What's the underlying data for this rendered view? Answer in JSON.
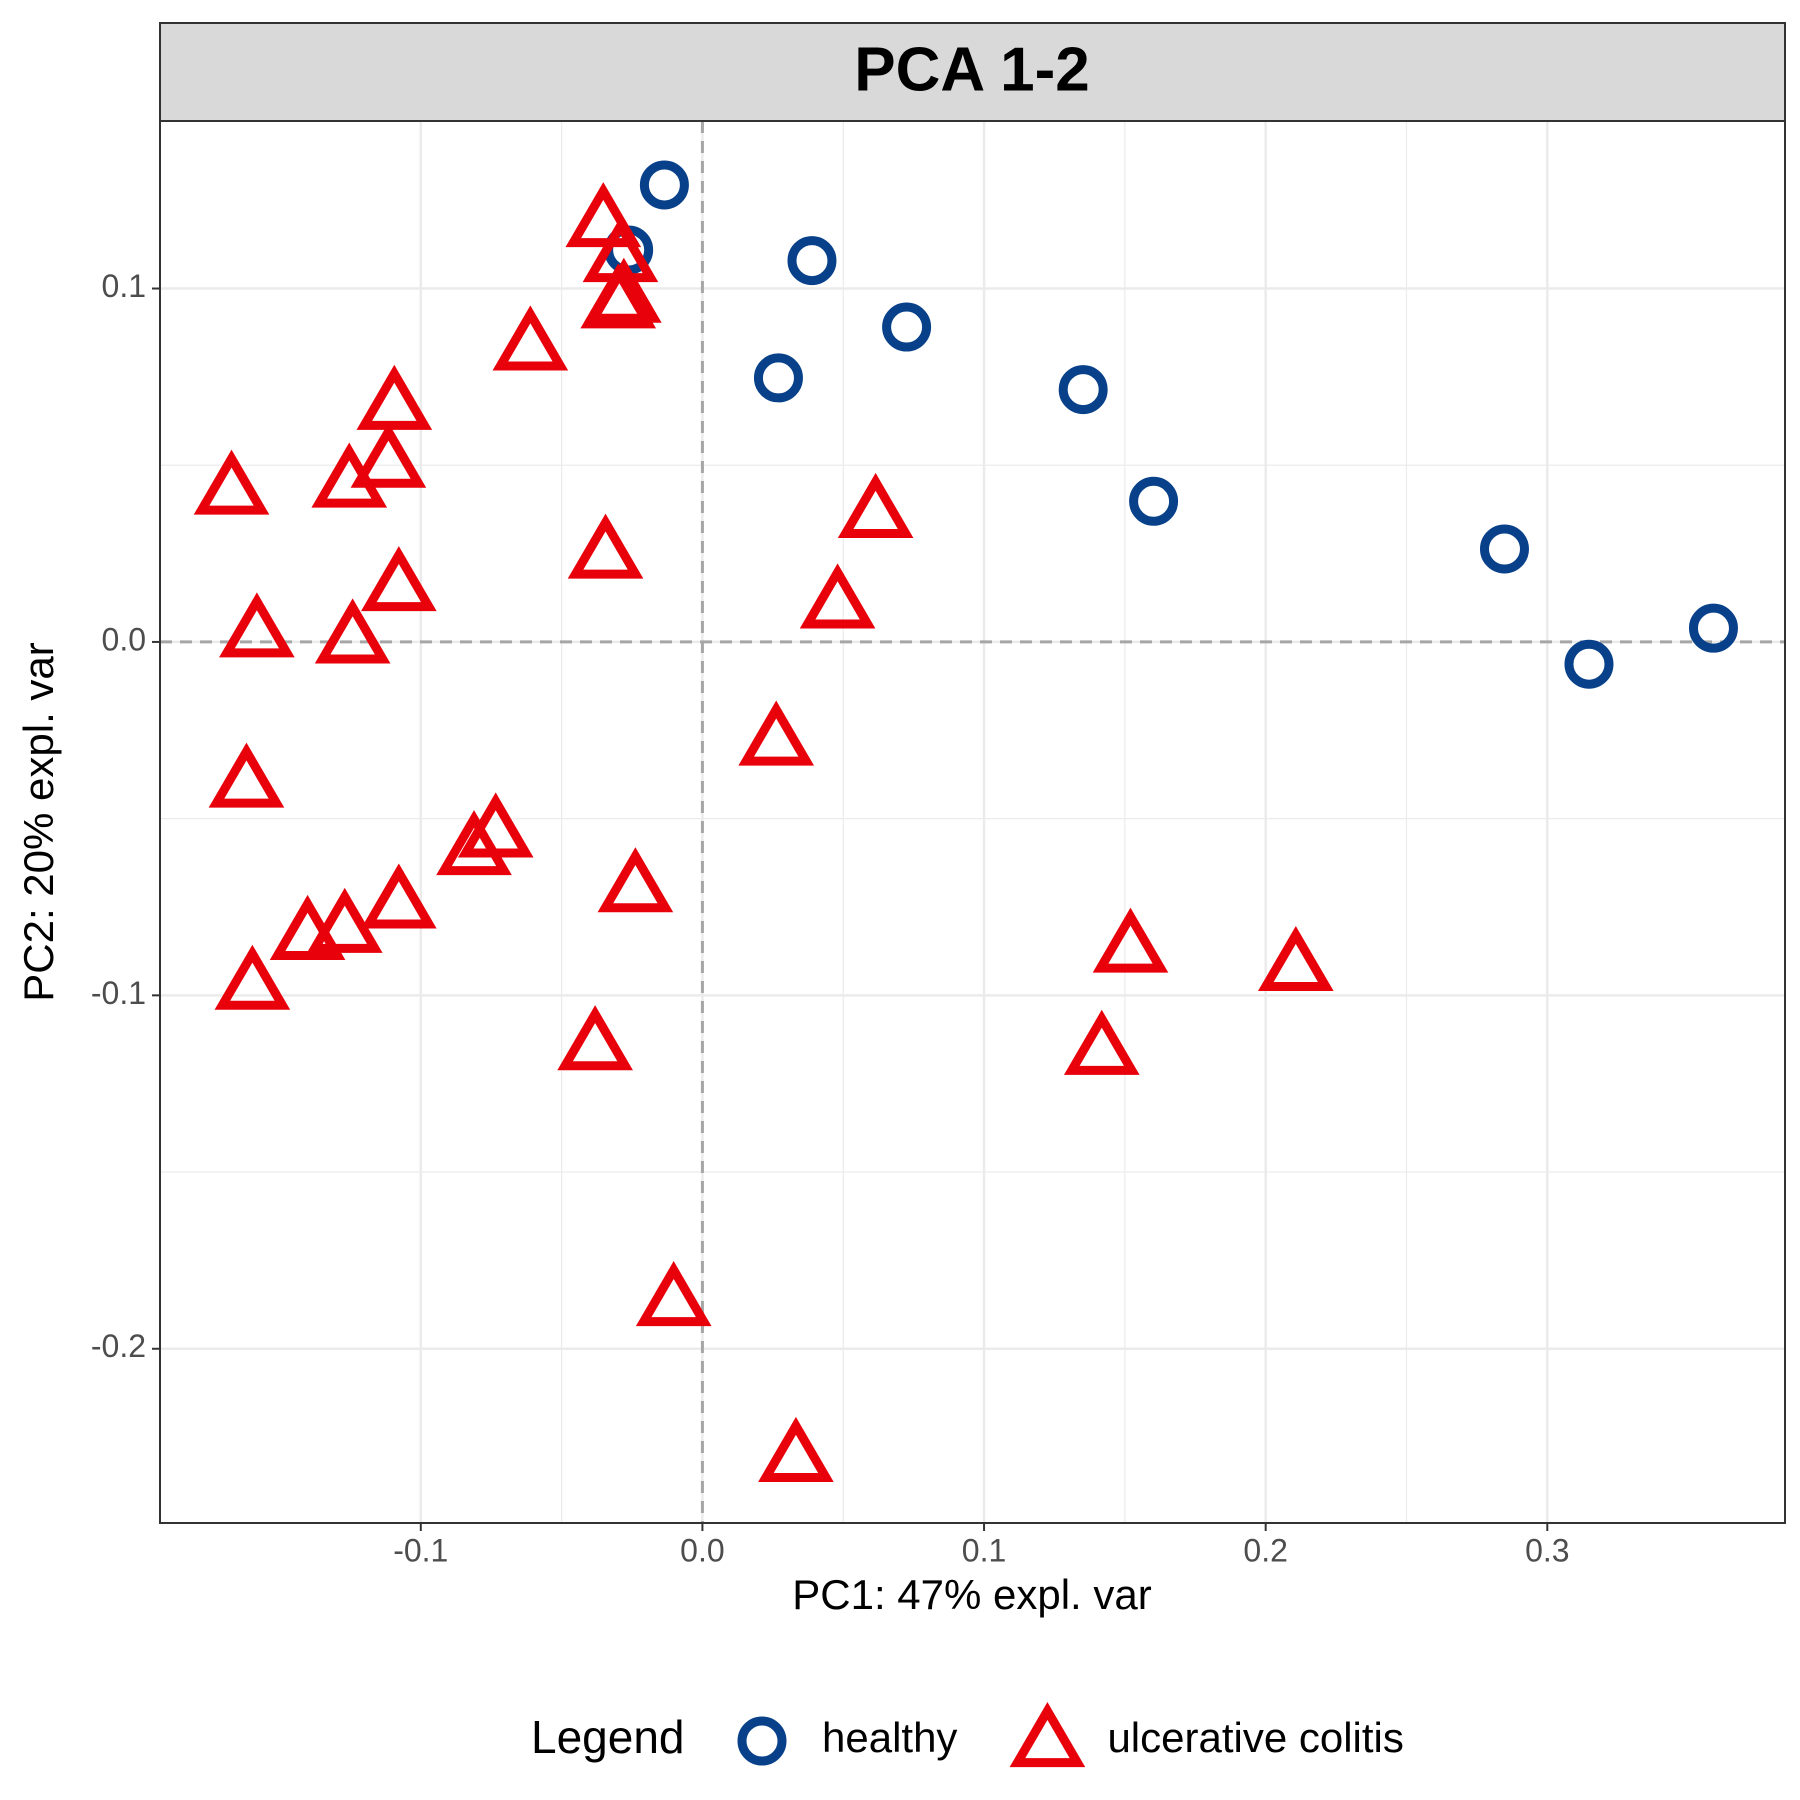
{
  "chart_data": {
    "type": "scatter",
    "title": "PCA 1-2",
    "x_label": "PC1: 47% expl. var",
    "y_label": "PC2: 20% expl. var",
    "legend_title": "Legend",
    "legend": "bottom",
    "grid": true,
    "reference_lines": {
      "x": 0,
      "y": 0
    },
    "xlim": [
      -0.1926,
      0.3844
    ],
    "ylim": [
      -0.2493,
      0.1474
    ],
    "xticks": [
      {
        "value": -0.1,
        "label": "-0.1"
      },
      {
        "value": 0,
        "label": "0.0"
      },
      {
        "value": 0.1,
        "label": "0.1"
      },
      {
        "value": 0.2,
        "label": "0.2"
      },
      {
        "value": 0.3,
        "label": "0.3"
      }
    ],
    "yticks": [
      {
        "value": -0.2,
        "label": "-0.2"
      },
      {
        "value": -0.1,
        "label": "-0.1"
      },
      {
        "value": 0,
        "label": "0.0"
      },
      {
        "value": 0.1,
        "label": "0.1"
      }
    ],
    "series": [
      {
        "name": "healthy",
        "color": "#08418a",
        "marker": "circle",
        "x": [
          -0.0135,
          -0.0262,
          0.0389,
          0.0725,
          0.027,
          0.1352,
          0.1602,
          0.2848,
          0.3148,
          0.359
        ],
        "values": [
          0.1293,
          0.1109,
          0.1079,
          0.0891,
          0.0747,
          0.0714,
          0.0398,
          0.0263,
          -0.0063,
          0.0039
        ]
      },
      {
        "name": "ulcerative colitis",
        "color": "#e8000b",
        "marker": "triangle",
        "x": [
          -0.0352,
          -0.0291,
          -0.0279,
          -0.0299,
          -0.0611,
          -0.1094,
          -0.1115,
          -0.1254,
          -0.1672,
          0.0615,
          -0.0344,
          -0.1078,
          0.048,
          -0.1582,
          -0.1242,
          0.0262,
          -0.1619,
          -0.0734,
          -0.0811,
          -0.0238,
          -0.1078,
          -0.1402,
          -0.127,
          -0.1598,
          0.152,
          0.2107,
          -0.0381,
          0.1418,
          -0.0102,
          0.0332
        ],
        "values": [
          0.1191,
          0.1092,
          0.0977,
          0.0961,
          0.0842,
          0.0674,
          0.051,
          0.0454,
          0.0434,
          0.0368,
          0.0253,
          0.0161,
          0.0112,
          0.003,
          0.0013,
          -0.0276,
          -0.0395,
          -0.0536,
          -0.0586,
          -0.0691,
          -0.0737,
          -0.0826,
          -0.0806,
          -0.0967,
          -0.0862,
          -0.0914,
          -0.1138,
          -0.1151,
          -0.1862,
          -0.2303
        ]
      }
    ]
  }
}
